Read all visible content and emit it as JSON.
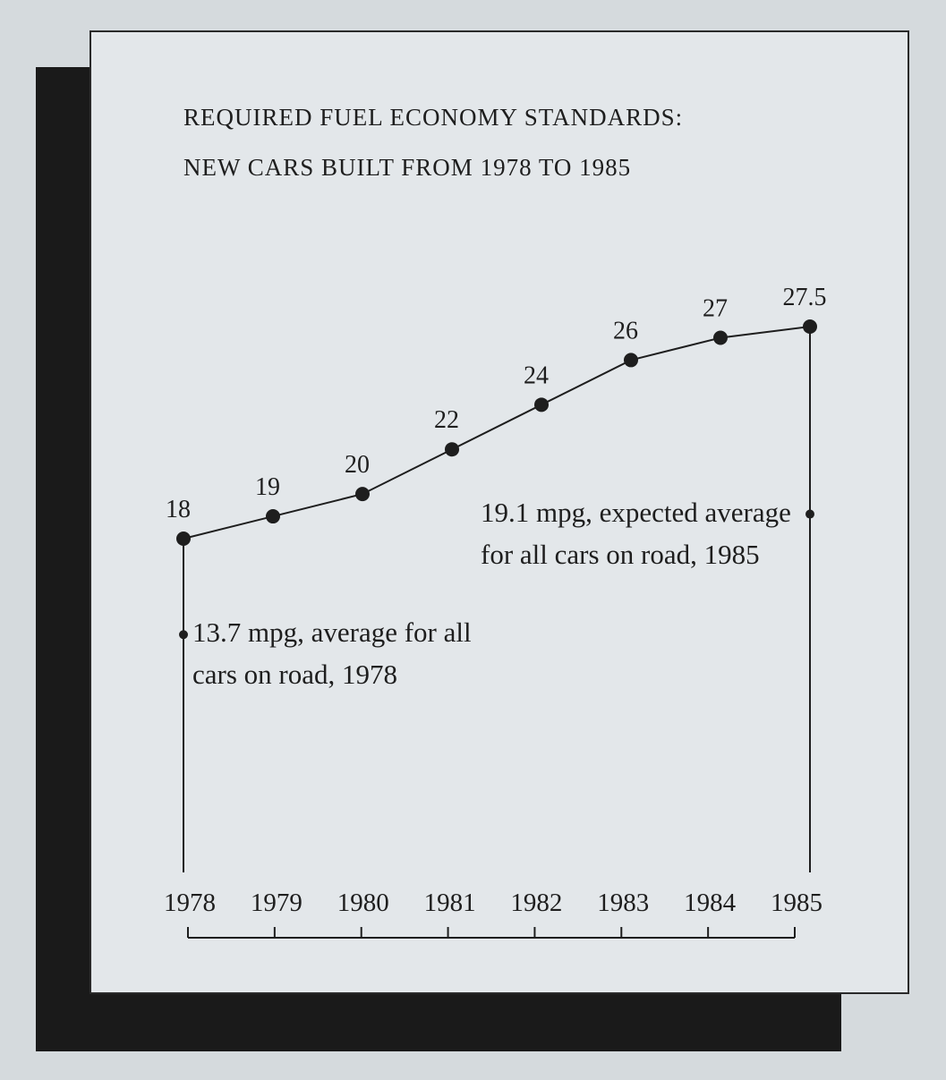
{
  "chart_data": {
    "type": "line",
    "title": "REQUIRED FUEL ECONOMY STANDARDS:",
    "subtitle": "NEW CARS BUILT FROM 1978 TO 1985",
    "categories": [
      "1978",
      "1979",
      "1980",
      "1981",
      "1982",
      "1983",
      "1984",
      "1985"
    ],
    "series": [
      {
        "name": "Required fuel economy",
        "color": "#1e1e1e",
        "values": [
          18,
          19,
          20,
          22,
          24,
          26,
          27,
          27.5
        ]
      }
    ],
    "annotations": [
      {
        "category": "1978",
        "value": 13.7,
        "text": "13.7 mpg, average for all cars on road, 1978"
      },
      {
        "category": "1985",
        "value": 19.1,
        "text": "19.1 mpg, expected average for all cars on road, 1985"
      }
    ]
  }
}
